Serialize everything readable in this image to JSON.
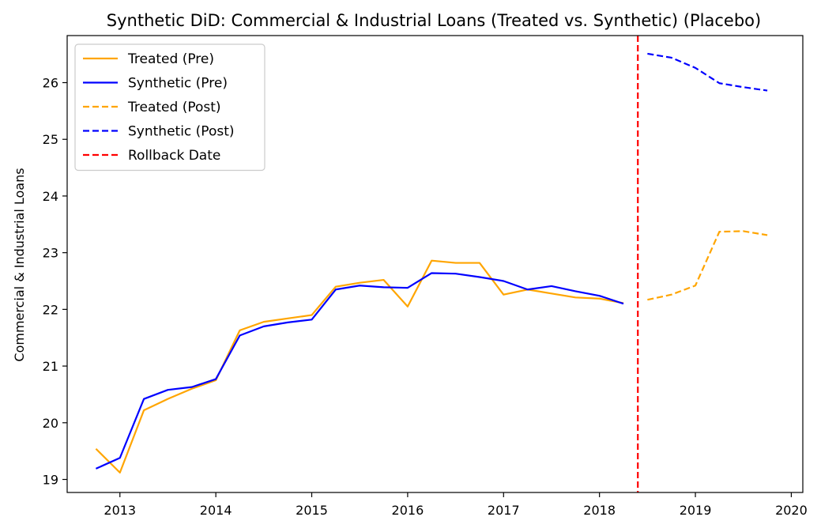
{
  "chart_data": {
    "type": "line",
    "title": "Synthetic DiD: Commercial & Industrial Loans (Treated vs. Synthetic) (Placebo)",
    "xlabel": "",
    "ylabel": "Commercial & Industrial Loans",
    "xlim": [
      2012.45,
      2020.12
    ],
    "ylim": [
      18.77,
      26.83
    ],
    "x_ticks": [
      2013,
      2014,
      2015,
      2016,
      2017,
      2018,
      2019,
      2020
    ],
    "y_ticks": [
      19,
      20,
      21,
      22,
      23,
      24,
      25,
      26
    ],
    "grid": false,
    "legend_position": "top-left",
    "rollback": {
      "name": "Rollback Date",
      "x": 2018.4,
      "color": "#ff0000",
      "style": "dashed"
    },
    "series": [
      {
        "name": "Treated (Pre)",
        "color": "#ffa500",
        "style": "solid",
        "x": [
          2012.75,
          2013.0,
          2013.25,
          2013.5,
          2013.75,
          2014.0,
          2014.25,
          2014.5,
          2014.75,
          2015.0,
          2015.25,
          2015.5,
          2015.75,
          2016.0,
          2016.25,
          2016.5,
          2016.75,
          2017.0,
          2017.25,
          2017.5,
          2017.75,
          2018.0,
          2018.25
        ],
        "values": [
          19.54,
          19.12,
          20.22,
          20.42,
          20.6,
          20.75,
          21.63,
          21.78,
          21.84,
          21.9,
          22.4,
          22.47,
          22.52,
          22.05,
          22.86,
          22.82,
          22.82,
          22.26,
          22.35,
          22.28,
          22.21,
          22.19,
          22.11
        ]
      },
      {
        "name": "Synthetic (Pre)",
        "color": "#0000ff",
        "style": "solid",
        "x": [
          2012.75,
          2013.0,
          2013.25,
          2013.5,
          2013.75,
          2014.0,
          2014.25,
          2014.5,
          2014.75,
          2015.0,
          2015.25,
          2015.5,
          2015.75,
          2016.0,
          2016.25,
          2016.5,
          2016.75,
          2017.0,
          2017.25,
          2017.5,
          2017.75,
          2018.0,
          2018.25
        ],
        "values": [
          19.19,
          19.38,
          20.42,
          20.58,
          20.63,
          20.77,
          21.54,
          21.7,
          21.77,
          21.82,
          22.35,
          22.42,
          22.39,
          22.38,
          22.64,
          22.63,
          22.57,
          22.5,
          22.35,
          22.41,
          22.32,
          22.24,
          22.1
        ]
      },
      {
        "name": "Treated (Post)",
        "color": "#ffa500",
        "style": "dashed",
        "x": [
          2018.5,
          2018.75,
          2019.0,
          2019.25,
          2019.5,
          2019.75
        ],
        "values": [
          22.17,
          22.26,
          22.42,
          23.37,
          23.38,
          23.31
        ]
      },
      {
        "name": "Synthetic (Post)",
        "color": "#0000ff",
        "style": "dashed",
        "x": [
          2018.5,
          2018.75,
          2019.0,
          2019.25,
          2019.5,
          2019.75
        ],
        "values": [
          26.51,
          26.44,
          26.26,
          25.99,
          25.92,
          25.86
        ]
      }
    ]
  }
}
